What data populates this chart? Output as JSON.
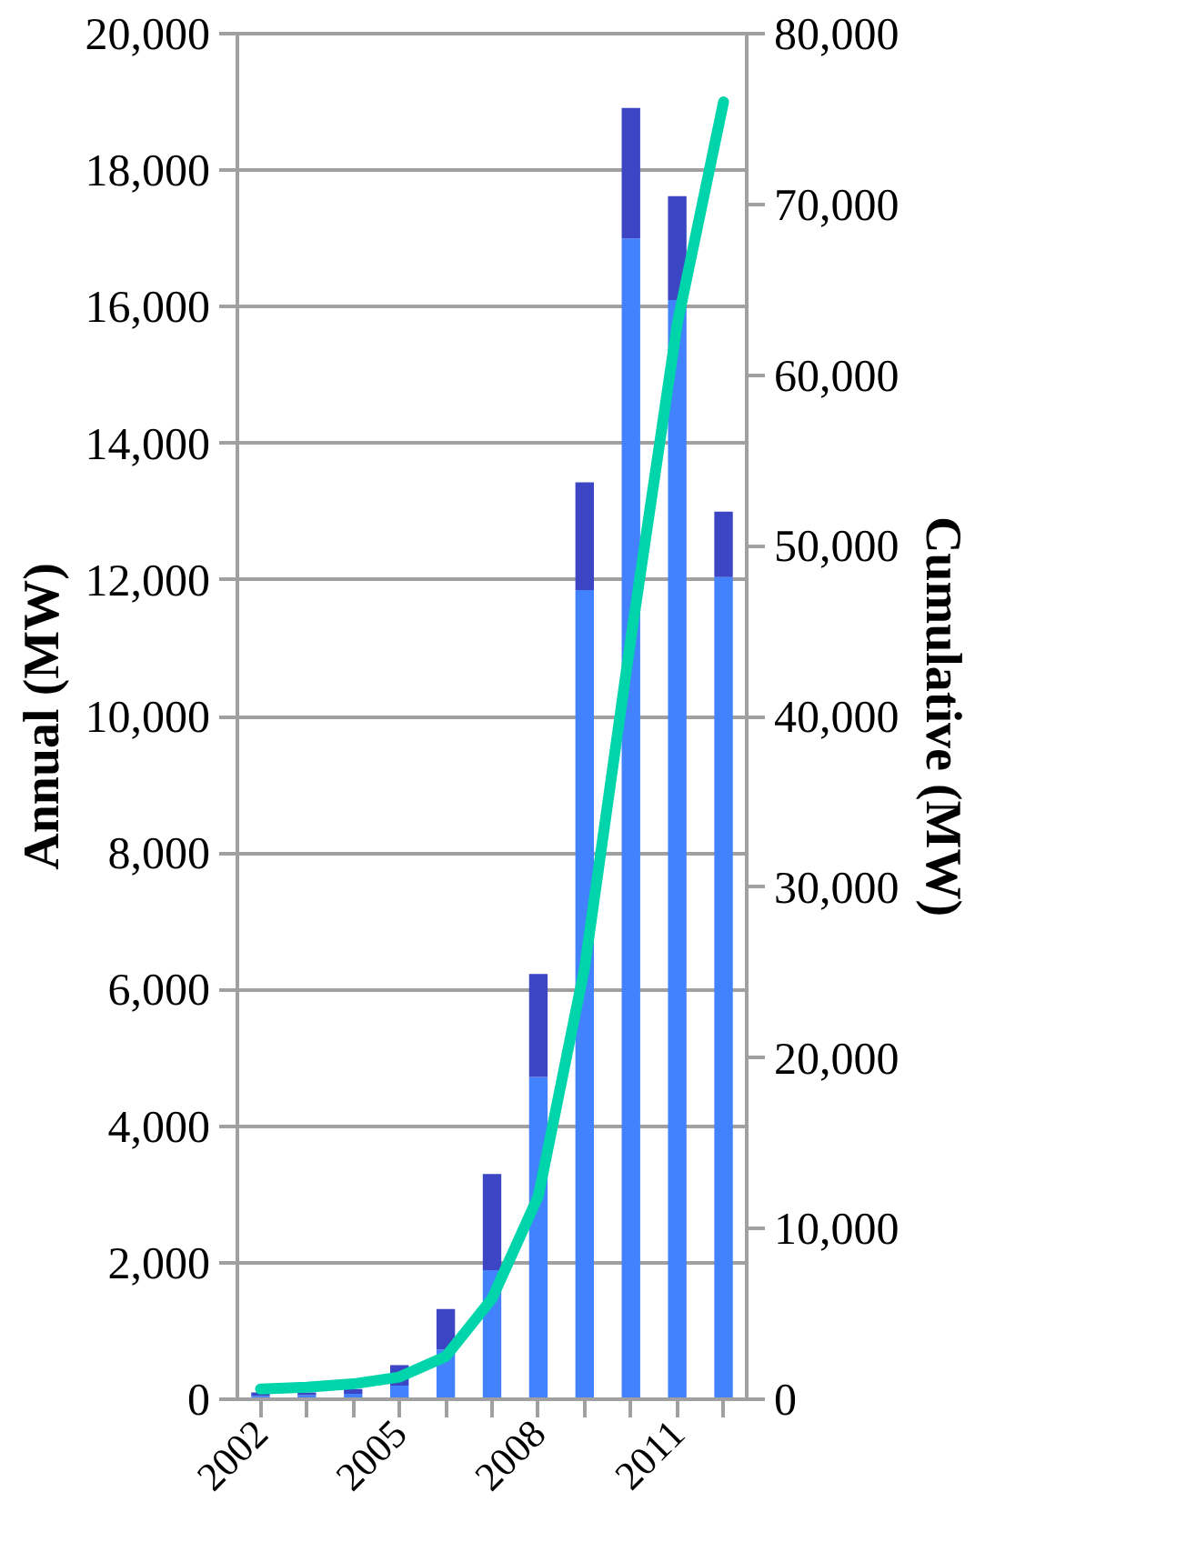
{
  "chart_data": {
    "type": "bar",
    "stacked": true,
    "ylabel": "Annual (MW)",
    "y2label": "Cumulative (MW)",
    "categories": [
      "2002",
      null,
      null,
      "2005",
      null,
      null,
      "2008",
      null,
      null,
      "2011",
      null
    ],
    "series": [
      {
        "color": "#4282fe",
        "values": [
          50,
          60,
          80,
          200,
          730,
          1890,
          4720,
          11850,
          17000,
          16100,
          12040
        ]
      },
      {
        "color": "#3c46c4",
        "values": [
          50,
          40,
          70,
          300,
          590,
          1410,
          1510,
          1580,
          1910,
          1520,
          960
        ]
      },
      {
        "type": "line",
        "axis": "y2",
        "color": "#00d4aa",
        "values": [
          600,
          700,
          900,
          1300,
          2500,
          5900,
          11900,
          25300,
          44600,
          63000,
          76000
        ]
      }
    ],
    "ylim": [
      0,
      20000
    ],
    "yticks": [
      {
        "value": 0,
        "label": "0"
      },
      {
        "value": 2000,
        "label": "2,000"
      },
      {
        "value": 4000,
        "label": "4,000"
      },
      {
        "value": 6000,
        "label": "6,000"
      },
      {
        "value": 8000,
        "label": "8,000"
      },
      {
        "value": 10000,
        "label": "10,000"
      },
      {
        "value": 12000,
        "label": "12,000"
      },
      {
        "value": 14000,
        "label": "14,000"
      },
      {
        "value": 16000,
        "label": "16,000"
      },
      {
        "value": 18000,
        "label": "18,000"
      },
      {
        "value": 20000,
        "label": "20,000"
      }
    ],
    "y2lim": [
      0,
      80000
    ],
    "y2ticks": [
      {
        "value": 0,
        "label": "0"
      },
      {
        "value": 10000,
        "label": "10,000"
      },
      {
        "value": 20000,
        "label": "20,000"
      },
      {
        "value": 30000,
        "label": "30,000"
      },
      {
        "value": 40000,
        "label": "40,000"
      },
      {
        "value": 50000,
        "label": "50,000"
      },
      {
        "value": 60000,
        "label": "60,000"
      },
      {
        "value": 70000,
        "label": "70,000"
      },
      {
        "value": 80000,
        "label": "80,000"
      }
    ],
    "grid": "y"
  }
}
